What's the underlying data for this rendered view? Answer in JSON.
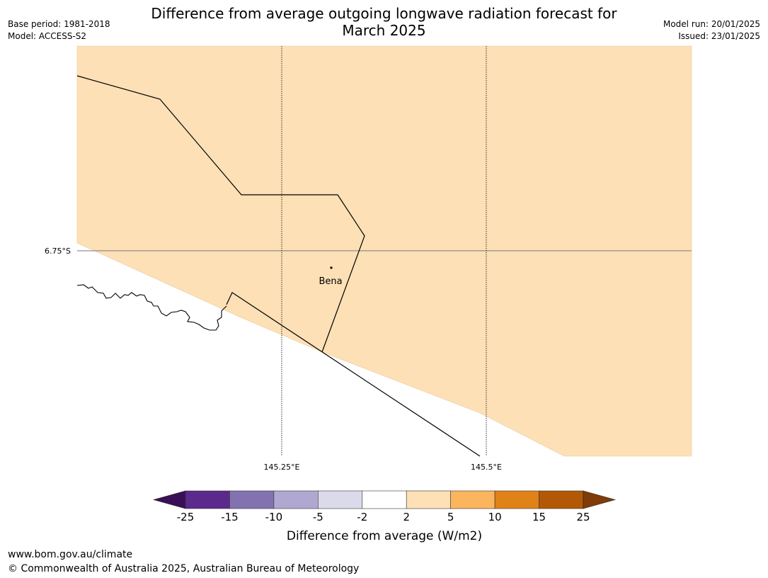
{
  "header": {
    "title_line1": "Difference from average outgoing longwave radiation forecast for",
    "title_line2": "March 2025",
    "base_period": "Base period: 1981-2018",
    "model": "Model: ACCESS-S2",
    "model_run": "Model run: 20/01/2025",
    "issued": "Issued: 23/01/2025"
  },
  "map": {
    "lat_labels": [
      "6.75°S"
    ],
    "lon_labels": [
      "145.25°E",
      "145.5°E"
    ],
    "place": "Bena",
    "fill_color": "#fde0b6",
    "fill_category": "2 to 5"
  },
  "colorbar": {
    "label": "Difference from average (W/m2)",
    "ticks": [
      "-25",
      "-15",
      "-10",
      "-5",
      "-2",
      "2",
      "5",
      "10",
      "15",
      "25"
    ],
    "colors": [
      "#3b0f57",
      "#5b2a8c",
      "#8273b0",
      "#b1a8d2",
      "#dadaeb",
      "#ffffff",
      "#fde0b6",
      "#fbb55d",
      "#e08218",
      "#b35806",
      "#7f3b08"
    ]
  },
  "footer": {
    "url": "www.bom.gov.au/climate",
    "copyright": "© Commonwealth of Australia 2025, Australian Bureau of Meteorology"
  }
}
